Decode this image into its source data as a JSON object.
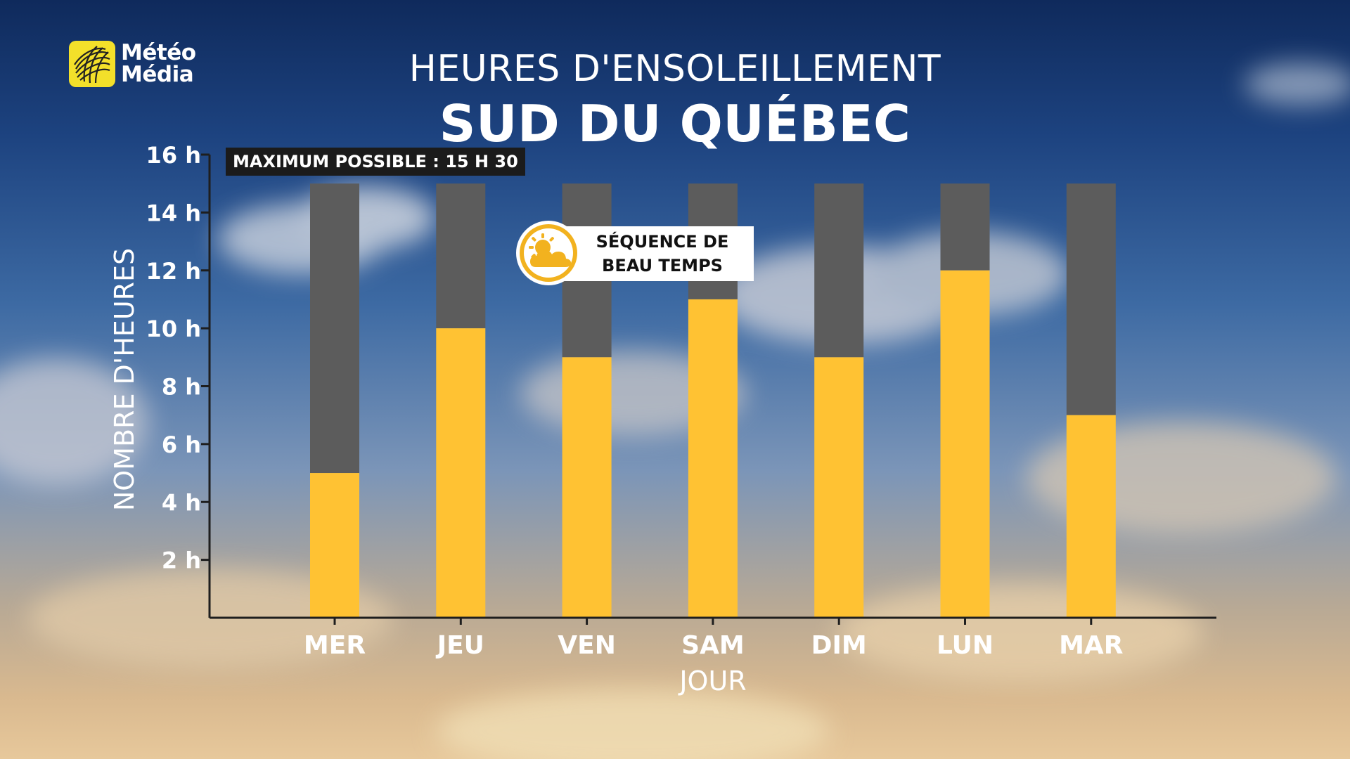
{
  "brand": {
    "name_line1": "Météo",
    "name_line2": "Média"
  },
  "header": {
    "title": "HEURES D'ENSOLEILLEMENT",
    "region": "SUD DU QUÉBEC"
  },
  "badge": {
    "max_label": "MAXIMUM POSSIBLE : 15 H 30"
  },
  "callout": {
    "line1": "SÉQUENCE DE",
    "line2": "BEAU TEMPS",
    "icon": "sun-cloud-icon"
  },
  "colors": {
    "sunshine": "#FFC233",
    "remaining": "#5C5C5C",
    "axis": "#1E1E1E",
    "text": "#FFFFFF"
  },
  "chart_data": {
    "type": "bar",
    "categories": [
      "MER",
      "JEU",
      "VEN",
      "SAM",
      "DIM",
      "LUN",
      "MAR"
    ],
    "series": [
      {
        "values": [
          5,
          10,
          9,
          11,
          9,
          12,
          7
        ]
      },
      {
        "values": [
          10,
          5,
          6,
          4,
          6,
          3,
          8
        ]
      }
    ],
    "total_possible": 15,
    "stacked": true,
    "xlabel": "JOUR",
    "ylabel": "NOMBRE D'HEURES",
    "yticks": [
      2,
      4,
      6,
      8,
      10,
      12,
      14,
      16
    ],
    "ytick_labels": [
      "2 h",
      "4 h",
      "6 h",
      "8 h",
      "10 h",
      "12 h",
      "14 h",
      "16 h"
    ],
    "ylim": [
      0,
      16
    ],
    "grid": false
  }
}
